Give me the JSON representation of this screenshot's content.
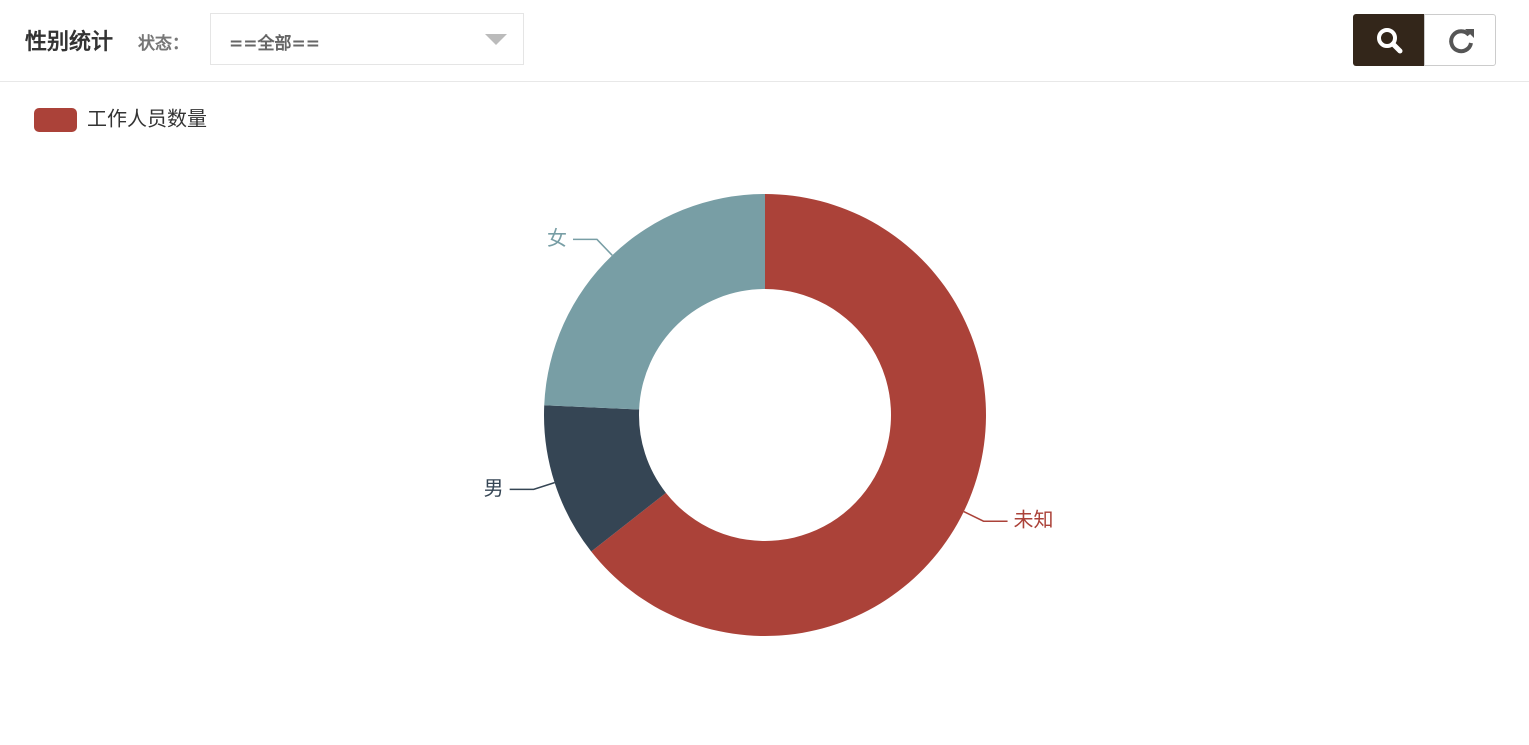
{
  "header": {
    "title": "性别统计",
    "filter_label": "状态：",
    "filter_value": "==全部=="
  },
  "chart_data": {
    "type": "pie",
    "donut": true,
    "legend": "top-left",
    "categories": [
      "未知",
      "男",
      "女"
    ],
    "colors": [
      "#ab4239",
      "#354554",
      "#789ea5"
    ],
    "series": [
      {
        "name": "工作人员数量",
        "color": "#ab4239",
        "values": [
          64.4,
          11.3,
          24.3
        ]
      }
    ]
  }
}
